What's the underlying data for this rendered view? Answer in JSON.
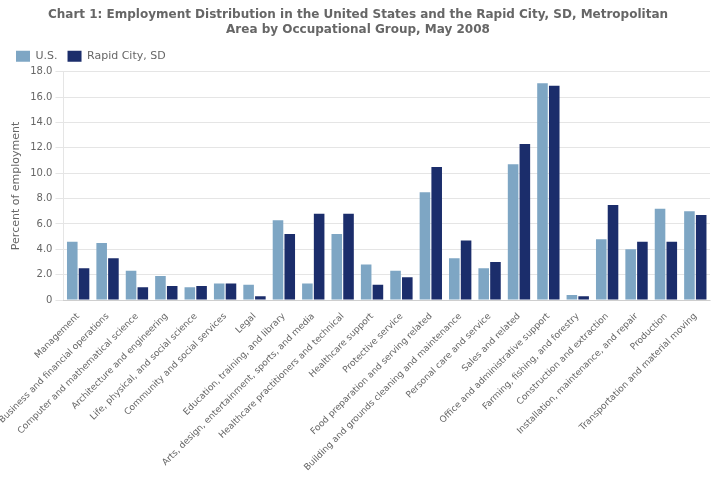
{
  "chart_data": {
    "type": "bar",
    "title": "Chart 1: Employment Distribution in the United States and the Rapid City, SD, Metropolitan\nArea by Occupational Group, May 2008",
    "ylabel": "Percent of employment",
    "categories": [
      "Management",
      "Business and financial operations",
      "Computer and mathematical science",
      "Architecture and engineering",
      "Life, physical, and social science",
      "Community and social services",
      "Legal",
      "Education, training, and library",
      "Arts, design, entertainment, sports, and media",
      "Healthcare practitioners and technical",
      "Healthcare support",
      "Protective service",
      "Food preparation and serving related",
      "Building and grounds cleaning and maintenance",
      "Personal care and service",
      "Sales and related",
      "Office and administrative support",
      "Farming, fishing, and forestry",
      "Construction and extraction",
      "Installation, maintenance, and repair",
      "Production",
      "Transportation and material moving"
    ],
    "series": [
      {
        "name": "U.S.",
        "color": "#7EA6C4",
        "values": [
          4.6,
          4.5,
          2.3,
          1.9,
          1.0,
          1.3,
          1.2,
          6.3,
          1.3,
          5.2,
          2.8,
          2.3,
          8.5,
          3.3,
          2.5,
          10.7,
          17.1,
          0.4,
          4.8,
          4.0,
          7.2,
          7.0
        ]
      },
      {
        "name": "Rapid City, SD",
        "color": "#1B2D6B",
        "values": [
          2.5,
          3.3,
          1.0,
          1.1,
          1.1,
          1.3,
          0.3,
          5.2,
          6.8,
          6.8,
          1.2,
          1.8,
          10.5,
          4.7,
          3.0,
          12.3,
          16.9,
          0.3,
          7.5,
          4.6,
          4.6,
          6.7
        ]
      }
    ],
    "ylim": [
      0,
      18.0
    ],
    "yticks": [
      0,
      {
        "value": 2,
        "label": "2.0"
      },
      {
        "value": 4,
        "label": "4.0"
      },
      {
        "value": 6,
        "label": "6.0"
      },
      {
        "value": 8,
        "label": "8.0"
      },
      {
        "value": 10,
        "label": "10.0"
      },
      {
        "value": 12,
        "label": "12.0"
      },
      {
        "value": 14,
        "label": "14.0"
      },
      {
        "value": 16,
        "label": "16.0"
      },
      {
        "value": 18,
        "label": "18.0"
      }
    ],
    "grid": "y",
    "legend": "upper left"
  }
}
